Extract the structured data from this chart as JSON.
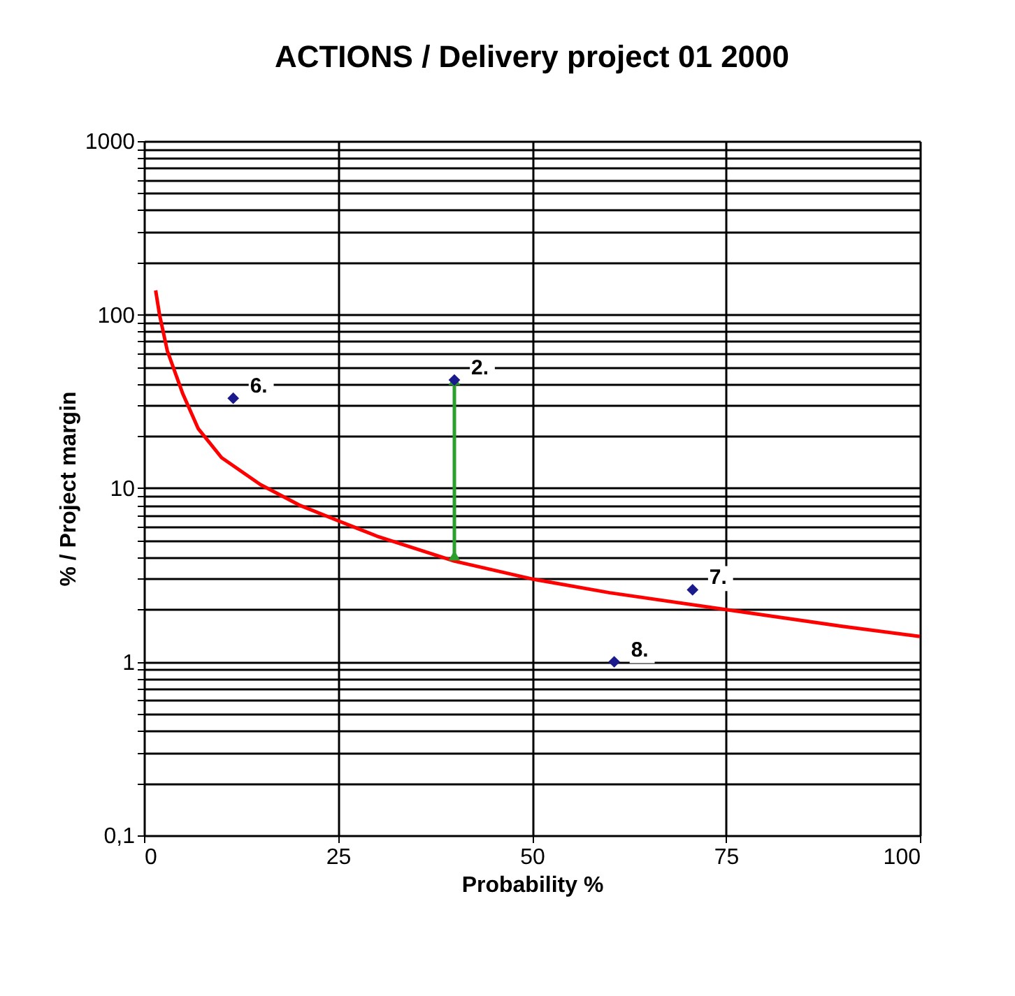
{
  "chart_data": {
    "type": "line",
    "title": "ACTIONS / Delivery project 01 2000",
    "xlabel": "Probability %",
    "ylabel": "% / Project margin",
    "log": "y",
    "grid": true,
    "xlim": [
      0,
      100
    ],
    "xticks": [
      0,
      25,
      50,
      75,
      100
    ],
    "ylim": [
      0.1,
      1000
    ],
    "yticks": [
      {
        "value": 0.1,
        "label": "0,1"
      },
      {
        "value": 0.2,
        "label": null
      },
      {
        "value": 0.3,
        "label": null
      },
      {
        "value": 0.4,
        "label": null
      },
      {
        "value": 0.5,
        "label": null
      },
      {
        "value": 0.6,
        "label": null
      },
      {
        "value": 0.7,
        "label": null
      },
      {
        "value": 0.8,
        "label": null
      },
      {
        "value": 0.9,
        "label": null
      },
      1,
      {
        "value": 2,
        "label": null
      },
      {
        "value": 3,
        "label": null
      },
      {
        "value": 4,
        "label": null
      },
      {
        "value": 5,
        "label": null
      },
      {
        "value": 6,
        "label": null
      },
      {
        "value": 7,
        "label": null
      },
      {
        "value": 8,
        "label": null
      },
      {
        "value": 9,
        "label": null
      },
      10,
      {
        "value": 20,
        "label": null
      },
      {
        "value": 30,
        "label": null
      },
      {
        "value": 40,
        "label": null
      },
      {
        "value": 50,
        "label": null
      },
      {
        "value": 60,
        "label": null
      },
      {
        "value": 70,
        "label": null
      },
      {
        "value": 80,
        "label": null
      },
      {
        "value": 90,
        "label": null
      },
      100,
      {
        "value": 200,
        "label": null
      },
      {
        "value": 300,
        "label": null
      },
      {
        "value": 400,
        "label": null
      },
      {
        "value": 500,
        "label": null
      },
      {
        "value": 600,
        "label": null
      },
      {
        "value": 700,
        "label": null
      },
      {
        "value": 800,
        "label": null
      },
      {
        "value": 900,
        "label": null
      },
      1000
    ],
    "series": [
      {
        "color": "#ff0000",
        "marker": "none",
        "line_style": "solid",
        "x": [
          1.5,
          2,
          3,
          5,
          7,
          10,
          15,
          20,
          25,
          30,
          40,
          50,
          60,
          75,
          90,
          100
        ],
        "values": [
          138,
          100,
          62,
          35,
          22,
          15,
          10.5,
          8,
          6.5,
          5.3,
          3.8,
          3.0,
          2.5,
          2.0,
          1.6,
          1.4
        ]
      },
      {
        "color": "#2ca02c",
        "marker": "triangle",
        "line_style": "solid",
        "x": [
          40,
          40
        ],
        "values": [
          4.1,
          42
        ]
      },
      {
        "type": "scatter",
        "color": "#1a1a8c",
        "marker": "diamond",
        "x": [
          11.5,
          40,
          70.7,
          60.6
        ],
        "values": [
          33,
          42,
          2.6,
          1.0
        ]
      }
    ],
    "annotations": [
      {
        "text": "6.",
        "x": 11.5,
        "y": 33
      },
      {
        "text": "2.",
        "x": 40,
        "y": 42
      },
      {
        "text": "7.",
        "x": 70.7,
        "y": 2.6
      },
      {
        "text": "8.",
        "x": 60.6,
        "y": 1.0
      }
    ]
  }
}
